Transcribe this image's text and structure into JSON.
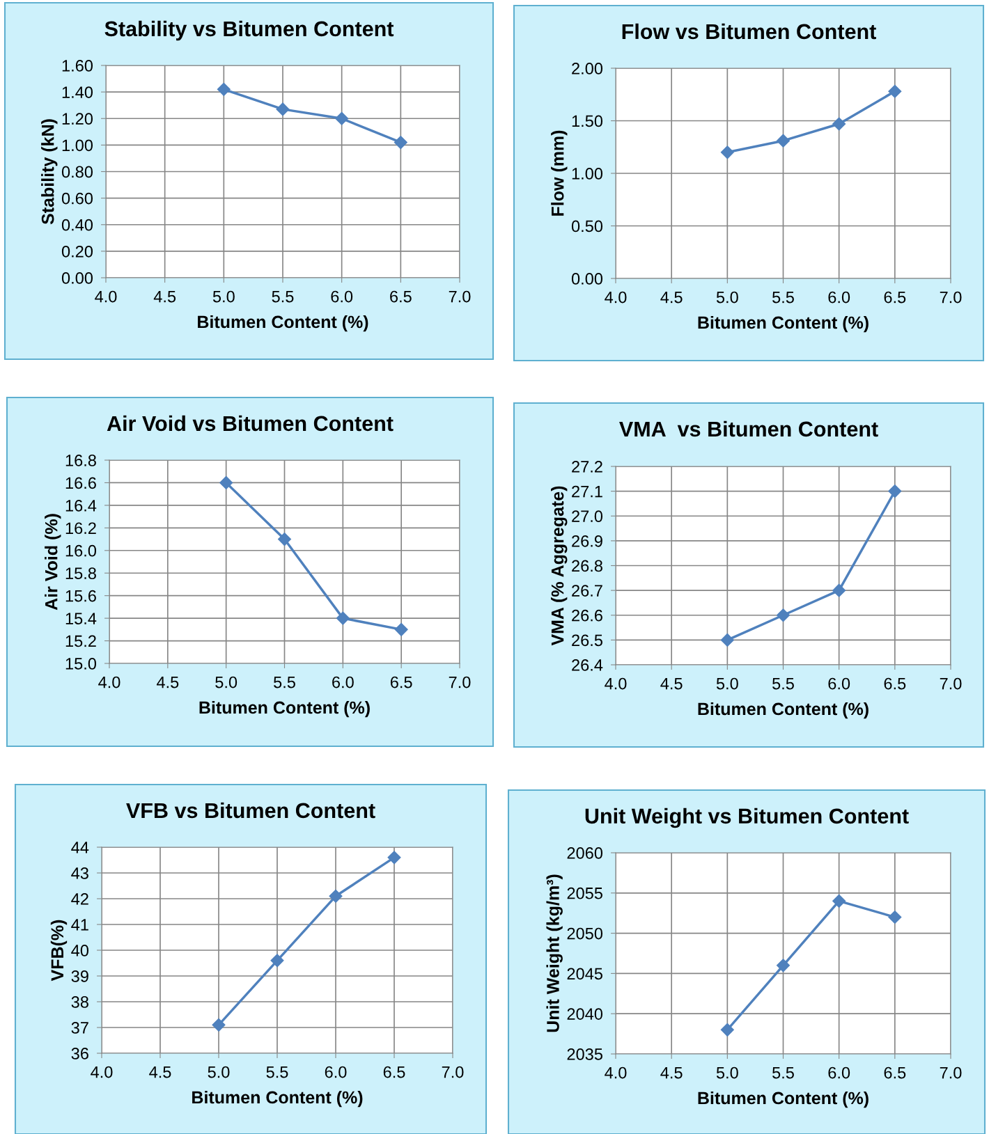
{
  "chart_data": [
    {
      "type": "line",
      "title": "Stability vs Bitumen Content",
      "xlabel": "Bitumen Content (%)",
      "ylabel": "Stability (kN)",
      "x": [
        5.0,
        5.5,
        6.0,
        6.5
      ],
      "series": [
        {
          "color": "#4f81bd",
          "values": [
            1.42,
            1.27,
            1.2,
            1.02
          ]
        }
      ],
      "xlim": [
        4.0,
        7.0
      ],
      "xticks": [
        {
          "value": 4.0,
          "label": "4.0"
        },
        {
          "value": 4.5,
          "label": "4.5"
        },
        {
          "value": 5.0,
          "label": "5.0"
        },
        {
          "value": 5.5,
          "label": "5.5"
        },
        {
          "value": 6.0,
          "label": "6.0"
        },
        {
          "value": 6.5,
          "label": "6.5"
        },
        {
          "value": 7.0,
          "label": "7.0"
        }
      ],
      "ylim": [
        0,
        1.6
      ],
      "yticks": [
        {
          "value": 0,
          "label": "0.00"
        },
        {
          "value": 0.2,
          "label": "0.20"
        },
        {
          "value": 0.4,
          "label": "0.40"
        },
        {
          "value": 0.6,
          "label": "0.60"
        },
        {
          "value": 0.8,
          "label": "0.80"
        },
        {
          "value": 1.0,
          "label": "1.00"
        },
        {
          "value": 1.2,
          "label": "1.20"
        },
        {
          "value": 1.4,
          "label": "1.40"
        },
        {
          "value": 1.6,
          "label": "1.60"
        }
      ],
      "grid": true,
      "marker": "diamond",
      "line_style": "solid"
    },
    {
      "type": "line",
      "title": "Flow vs Bitumen Content",
      "xlabel": "Bitumen Content (%)",
      "ylabel": "Flow (mm)",
      "x": [
        5.0,
        5.5,
        6.0,
        6.5
      ],
      "series": [
        {
          "color": "#4f81bd",
          "values": [
            1.2,
            1.31,
            1.47,
            1.78
          ]
        }
      ],
      "xlim": [
        4.0,
        7.0
      ],
      "xticks": [
        {
          "value": 4.0,
          "label": "4.0"
        },
        {
          "value": 4.5,
          "label": "4.5"
        },
        {
          "value": 5.0,
          "label": "5.0"
        },
        {
          "value": 5.5,
          "label": "5.5"
        },
        {
          "value": 6.0,
          "label": "6.0"
        },
        {
          "value": 6.5,
          "label": "6.5"
        },
        {
          "value": 7.0,
          "label": "7.0"
        }
      ],
      "ylim": [
        0,
        2.0
      ],
      "yticks": [
        {
          "value": 0,
          "label": "0.00"
        },
        {
          "value": 0.5,
          "label": "0.50"
        },
        {
          "value": 1.0,
          "label": "1.00"
        },
        {
          "value": 1.5,
          "label": "1.50"
        },
        {
          "value": 2.0,
          "label": "2.00"
        }
      ],
      "grid": true,
      "marker": "diamond",
      "line_style": "solid"
    },
    {
      "type": "line",
      "title": "Air Void vs Bitumen Content",
      "xlabel": "Bitumen Content (%)",
      "ylabel": "Air Void (%)",
      "x": [
        5.0,
        5.5,
        6.0,
        6.5
      ],
      "series": [
        {
          "color": "#4f81bd",
          "values": [
            16.6,
            16.1,
            15.4,
            15.3
          ]
        }
      ],
      "xlim": [
        4.0,
        7.0
      ],
      "xticks": [
        {
          "value": 4.0,
          "label": "4.0"
        },
        {
          "value": 4.5,
          "label": "4.5"
        },
        {
          "value": 5.0,
          "label": "5.0"
        },
        {
          "value": 5.5,
          "label": "5.5"
        },
        {
          "value": 6.0,
          "label": "6.0"
        },
        {
          "value": 6.5,
          "label": "6.5"
        },
        {
          "value": 7.0,
          "label": "7.0"
        }
      ],
      "ylim": [
        15.0,
        16.8
      ],
      "yticks": [
        {
          "value": 15.0,
          "label": "15.0"
        },
        15.2,
        15.4,
        15.6,
        15.8,
        {
          "value": 16.0,
          "label": "16.0"
        },
        16.2,
        16.4,
        16.6,
        16.8
      ],
      "grid": true,
      "marker": "diamond",
      "line_style": "solid"
    },
    {
      "type": "line",
      "title": "VMA  vs Bitumen Content",
      "xlabel": "Bitumen Content (%)",
      "ylabel": "VMA (% Aggregate)",
      "x": [
        5.0,
        5.5,
        6.0,
        6.5
      ],
      "series": [
        {
          "color": "#4f81bd",
          "values": [
            26.5,
            26.6,
            26.7,
            27.1
          ]
        }
      ],
      "xlim": [
        4.0,
        7.0
      ],
      "xticks": [
        {
          "value": 4.0,
          "label": "4.0"
        },
        {
          "value": 4.5,
          "label": "4.5"
        },
        {
          "value": 5.0,
          "label": "5.0"
        },
        {
          "value": 5.5,
          "label": "5.5"
        },
        {
          "value": 6.0,
          "label": "6.0"
        },
        {
          "value": 6.5,
          "label": "6.5"
        },
        {
          "value": 7.0,
          "label": "7.0"
        }
      ],
      "ylim": [
        26.4,
        27.2
      ],
      "yticks": [
        26.4,
        26.5,
        26.6,
        26.7,
        26.8,
        26.9,
        {
          "value": 27.0,
          "label": "27.0"
        },
        27.1,
        27.2
      ],
      "grid": true,
      "marker": "diamond",
      "line_style": "solid"
    },
    {
      "type": "line",
      "title": "VFB vs Bitumen Content",
      "xlabel": "Bitumen Content (%)",
      "ylabel": "VFB(%)",
      "x": [
        5.0,
        5.5,
        6.0,
        6.5
      ],
      "series": [
        {
          "color": "#4f81bd",
          "values": [
            37.1,
            39.6,
            42.1,
            43.6
          ]
        }
      ],
      "xlim": [
        4.0,
        7.0
      ],
      "xticks": [
        {
          "value": 4.0,
          "label": "4.0"
        },
        {
          "value": 4.5,
          "label": "4.5"
        },
        {
          "value": 5.0,
          "label": "5.0"
        },
        {
          "value": 5.5,
          "label": "5.5"
        },
        {
          "value": 6.0,
          "label": "6.0"
        },
        {
          "value": 6.5,
          "label": "6.5"
        },
        {
          "value": 7.0,
          "label": "7.0"
        }
      ],
      "ylim": [
        36,
        44
      ],
      "yticks": [
        36,
        37,
        38,
        39,
        40,
        41,
        42,
        43,
        44
      ],
      "grid": true,
      "marker": "diamond",
      "line_style": "solid"
    },
    {
      "type": "line",
      "title": "Unit Weight vs Bitumen Content",
      "xlabel": "Bitumen Content (%)",
      "ylabel": "Unit Weight (kg/m³)",
      "x": [
        5.0,
        5.5,
        6.0,
        6.5
      ],
      "series": [
        {
          "color": "#4f81bd",
          "values": [
            2038,
            2046,
            2054,
            2052
          ]
        }
      ],
      "xlim": [
        4.0,
        7.0
      ],
      "xticks": [
        {
          "value": 4.0,
          "label": "4.0"
        },
        {
          "value": 4.5,
          "label": "4.5"
        },
        {
          "value": 5.0,
          "label": "5.0"
        },
        {
          "value": 5.5,
          "label": "5.5"
        },
        {
          "value": 6.0,
          "label": "6.0"
        },
        {
          "value": 6.5,
          "label": "6.5"
        },
        {
          "value": 7.0,
          "label": "7.0"
        }
      ],
      "ylim": [
        2035,
        2060
      ],
      "yticks": [
        2035,
        2040,
        2045,
        2050,
        2055,
        2060
      ],
      "grid": true,
      "marker": "diamond",
      "line_style": "solid"
    }
  ]
}
